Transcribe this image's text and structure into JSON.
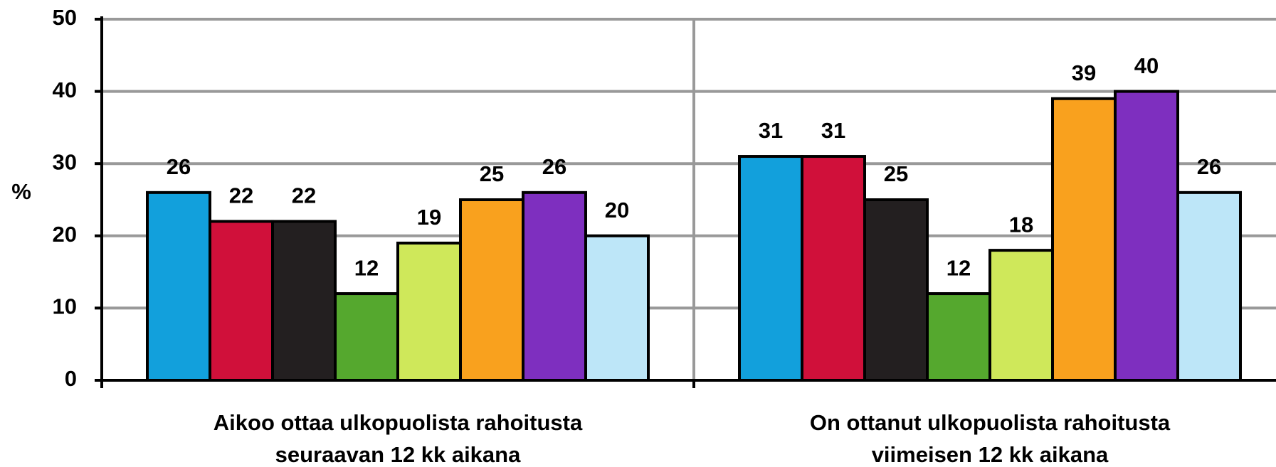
{
  "chart_data": {
    "type": "bar",
    "y_label": "%",
    "categories": [
      [
        "Aikoo ottaa ulkopuolista  rahoitusta",
        "seuraavan 12 kk aikana"
      ],
      [
        "On ottanut  ulkopuolista  rahoitusta",
        "viimeisen 12 kk aikana"
      ]
    ],
    "series": [
      {
        "color": "#12a0dc",
        "values": [
          26,
          31
        ]
      },
      {
        "color": "#d0103a",
        "values": [
          22,
          31
        ]
      },
      {
        "color": "#231f20",
        "values": [
          22,
          25
        ]
      },
      {
        "color": "#55a82e",
        "values": [
          12,
          12
        ]
      },
      {
        "color": "#cfe85a",
        "values": [
          19,
          18
        ]
      },
      {
        "color": "#f9a11e",
        "values": [
          25,
          39
        ]
      },
      {
        "color": "#7e2fbf",
        "values": [
          26,
          40
        ]
      },
      {
        "color": "#bde6f8",
        "values": [
          20,
          26
        ]
      }
    ],
    "ylim": [
      0,
      50
    ],
    "yticks": [
      0,
      10,
      20,
      30,
      40,
      50
    ],
    "grid": true
  }
}
